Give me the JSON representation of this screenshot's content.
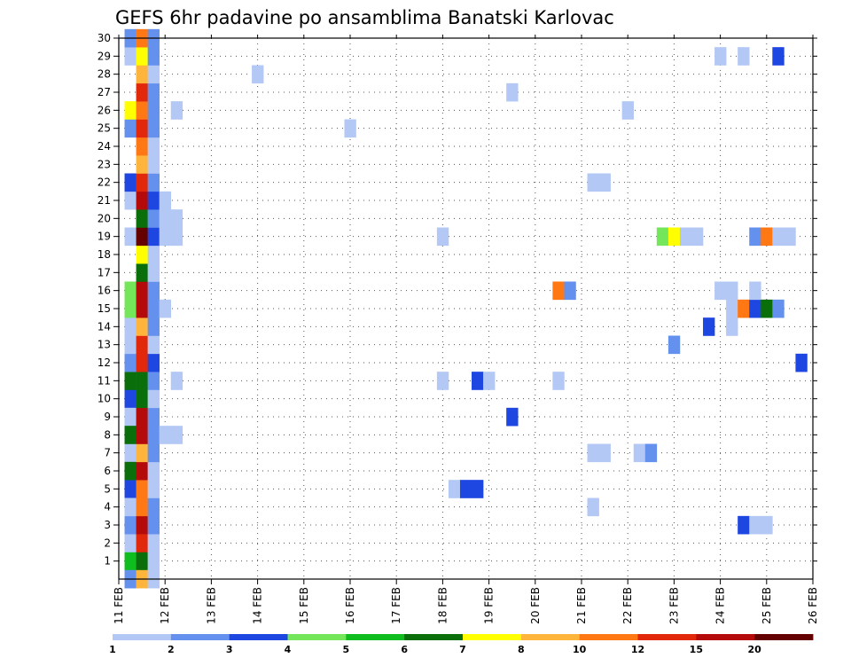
{
  "chart_data": {
    "type": "heatmap",
    "title": "GEFS 6hr padavine po ansamblima Banatski Karlovac",
    "xlabel": "",
    "ylabel": "",
    "x_ticks": [
      "11 FEB",
      "12 FEB",
      "13 FEB",
      "14 FEB",
      "15 FEB",
      "16 FEB",
      "17 FEB",
      "18 FEB",
      "19 FEB",
      "20 FEB",
      "21 FEB",
      "22 FEB",
      "23 FEB",
      "24 FEB",
      "25 FEB",
      "26 FEB"
    ],
    "xlim": [
      0,
      15
    ],
    "ylim": [
      0,
      30
    ],
    "y_ticks": [
      1,
      2,
      3,
      4,
      5,
      6,
      7,
      8,
      9,
      10,
      11,
      12,
      13,
      14,
      15,
      16,
      17,
      18,
      19,
      20,
      21,
      22,
      23,
      24,
      25,
      26,
      27,
      28,
      29,
      30
    ],
    "step_days": 0.25,
    "grid": true,
    "legend": "bottom",
    "colorbar": {
      "colors": [
        "#b4c8f5",
        "#6491ee",
        "#1e46e1",
        "#73e65a",
        "#0fbe1e",
        "#0a6e0a",
        "#ffff00",
        "#ffb43c",
        "#ff7814",
        "#e1280a",
        "#b40a0a",
        "#640000"
      ],
      "labels": [
        {
          "text": "1",
          "at": 0
        },
        {
          "text": "2",
          "at": 1
        },
        {
          "text": "3",
          "at": 2
        },
        {
          "text": "4",
          "at": 3
        },
        {
          "text": "5",
          "at": 4
        },
        {
          "text": "6",
          "at": 5
        },
        {
          "text": "7",
          "at": 6
        },
        {
          "text": "8",
          "at": 7
        },
        {
          "text": "10",
          "at": 8
        },
        {
          "text": "12",
          "at": 9
        },
        {
          "text": "15",
          "at": 10
        },
        {
          "text": "20",
          "at": 11
        }
      ]
    },
    "cells": [
      [
        0.25,
        1,
        5
      ],
      [
        0.25,
        2,
        1
      ],
      [
        0.25,
        3,
        2
      ],
      [
        0.25,
        7,
        1
      ],
      [
        0.25,
        10,
        3
      ],
      [
        0.25,
        11,
        6
      ],
      [
        0.25,
        12,
        2
      ],
      [
        0.25,
        13,
        1
      ],
      [
        0.25,
        14,
        1
      ],
      [
        0.25,
        15,
        4
      ],
      [
        0.25,
        16,
        4
      ],
      [
        0.25,
        19,
        1
      ],
      [
        0.25,
        21,
        1
      ],
      [
        0.25,
        22,
        3
      ],
      [
        0.25,
        25,
        2
      ],
      [
        0.25,
        26,
        7
      ],
      [
        0.25,
        29,
        1
      ],
      [
        0.25,
        30,
        2
      ],
      [
        0.25,
        0,
        2
      ],
      [
        0.25,
        9,
        1
      ],
      [
        0.25,
        5,
        3
      ],
      [
        0.25,
        6,
        6
      ],
      [
        0.25,
        8,
        6
      ],
      [
        0.25,
        4,
        1
      ],
      [
        0.5,
        1,
        6
      ],
      [
        0.5,
        2,
        10
      ],
      [
        0.5,
        3,
        11
      ],
      [
        0.5,
        4,
        9
      ],
      [
        0.5,
        5,
        9
      ],
      [
        0.5,
        6,
        11
      ],
      [
        0.5,
        7,
        8
      ],
      [
        0.5,
        8,
        11
      ],
      [
        0.5,
        9,
        11
      ],
      [
        0.5,
        10,
        6
      ],
      [
        0.5,
        11,
        6
      ],
      [
        0.5,
        12,
        10
      ],
      [
        0.5,
        13,
        10
      ],
      [
        0.5,
        14,
        8
      ],
      [
        0.5,
        15,
        11
      ],
      [
        0.5,
        16,
        11
      ],
      [
        0.5,
        17,
        6
      ],
      [
        0.5,
        18,
        7
      ],
      [
        0.5,
        19,
        12
      ],
      [
        0.5,
        20,
        6
      ],
      [
        0.5,
        21,
        11
      ],
      [
        0.5,
        22,
        10
      ],
      [
        0.5,
        23,
        8
      ],
      [
        0.5,
        24,
        9
      ],
      [
        0.5,
        25,
        10
      ],
      [
        0.5,
        26,
        9
      ],
      [
        0.5,
        27,
        10
      ],
      [
        0.5,
        28,
        8
      ],
      [
        0.5,
        29,
        7
      ],
      [
        0.5,
        30,
        9
      ],
      [
        0.5,
        0,
        8
      ],
      [
        0.75,
        1,
        1
      ],
      [
        0.75,
        2,
        1
      ],
      [
        0.75,
        3,
        2
      ],
      [
        0.75,
        4,
        2
      ],
      [
        0.75,
        5,
        1
      ],
      [
        0.75,
        6,
        1
      ],
      [
        0.75,
        7,
        2
      ],
      [
        0.75,
        8,
        2
      ],
      [
        0.75,
        9,
        2
      ],
      [
        0.75,
        10,
        1
      ],
      [
        0.75,
        11,
        2
      ],
      [
        0.75,
        12,
        3
      ],
      [
        0.75,
        13,
        1
      ],
      [
        0.75,
        14,
        2
      ],
      [
        0.75,
        15,
        2
      ],
      [
        0.75,
        16,
        2
      ],
      [
        0.75,
        17,
        1
      ],
      [
        0.75,
        18,
        1
      ],
      [
        0.75,
        19,
        3
      ],
      [
        0.75,
        20,
        2
      ],
      [
        0.75,
        21,
        3
      ],
      [
        0.75,
        22,
        2
      ],
      [
        0.75,
        23,
        1
      ],
      [
        0.75,
        24,
        1
      ],
      [
        0.75,
        25,
        2
      ],
      [
        0.75,
        26,
        2
      ],
      [
        0.75,
        27,
        2
      ],
      [
        0.75,
        28,
        1
      ],
      [
        0.75,
        29,
        2
      ],
      [
        0.75,
        30,
        2
      ],
      [
        0.75,
        0,
        1
      ],
      [
        1.0,
        8,
        1
      ],
      [
        1.0,
        15,
        1
      ],
      [
        1.0,
        19,
        1
      ],
      [
        1.0,
        20,
        1
      ],
      [
        1.0,
        21,
        1
      ],
      [
        1.25,
        8,
        1
      ],
      [
        1.25,
        11,
        1
      ],
      [
        1.25,
        19,
        1
      ],
      [
        1.25,
        20,
        1
      ],
      [
        1.25,
        26,
        1
      ],
      [
        3.0,
        28,
        1
      ],
      [
        5.0,
        25,
        1
      ],
      [
        7.0,
        11,
        1
      ],
      [
        7.0,
        19,
        1
      ],
      [
        7.25,
        5,
        1
      ],
      [
        7.5,
        5,
        3
      ],
      [
        7.75,
        11,
        3
      ],
      [
        7.75,
        5,
        3
      ],
      [
        8.0,
        11,
        1
      ],
      [
        8.5,
        9,
        3
      ],
      [
        8.5,
        27,
        1
      ],
      [
        9.5,
        16,
        9
      ],
      [
        9.5,
        11,
        1
      ],
      [
        9.75,
        16,
        2
      ],
      [
        10.25,
        4,
        1
      ],
      [
        10.25,
        7,
        1
      ],
      [
        10.25,
        22,
        1
      ],
      [
        10.5,
        7,
        1
      ],
      [
        10.5,
        22,
        1
      ],
      [
        11.0,
        26,
        1
      ],
      [
        11.25,
        7,
        1
      ],
      [
        11.5,
        7,
        2
      ],
      [
        11.75,
        19,
        4
      ],
      [
        12.0,
        13,
        2
      ],
      [
        12.0,
        19,
        7
      ],
      [
        12.25,
        19,
        1
      ],
      [
        12.5,
        19,
        1
      ],
      [
        12.75,
        14,
        3
      ],
      [
        13.0,
        16,
        1
      ],
      [
        13.0,
        29,
        1
      ],
      [
        13.25,
        16,
        1
      ],
      [
        13.25,
        15,
        1
      ],
      [
        13.25,
        14,
        1
      ],
      [
        13.5,
        15,
        9
      ],
      [
        13.5,
        3,
        3
      ],
      [
        13.5,
        29,
        1
      ],
      [
        13.75,
        15,
        3
      ],
      [
        13.75,
        19,
        2
      ],
      [
        13.75,
        3,
        1
      ],
      [
        13.75,
        16,
        1
      ],
      [
        14.0,
        15,
        6
      ],
      [
        14.0,
        19,
        9
      ],
      [
        14.0,
        3,
        1
      ],
      [
        14.25,
        15,
        2
      ],
      [
        14.25,
        19,
        1
      ],
      [
        14.25,
        29,
        3
      ],
      [
        14.5,
        19,
        1
      ],
      [
        14.75,
        12,
        3
      ]
    ]
  }
}
